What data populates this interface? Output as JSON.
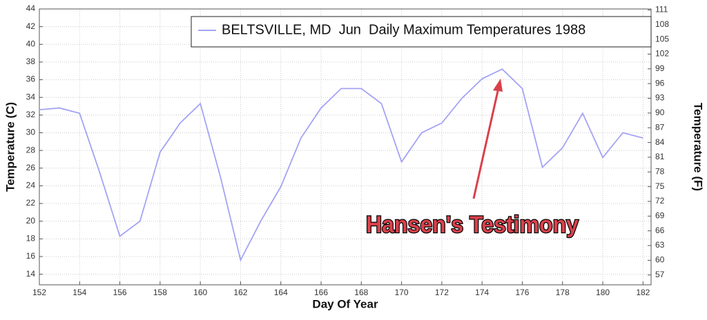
{
  "chart_data": {
    "type": "line",
    "legend_label": "BELTSVILLE, MD  Jun  Daily Maximum Temperatures 1988",
    "xlabel": "Day Of Year",
    "ylabel": "Temperature (C)",
    "y2label": "Temperature (F)",
    "annotation": "Hansen's Testimony",
    "x": [
      152,
      153,
      154,
      155,
      156,
      157,
      158,
      159,
      160,
      161,
      162,
      163,
      164,
      165,
      166,
      167,
      168,
      169,
      170,
      171,
      172,
      173,
      174,
      175,
      176,
      177,
      178,
      179,
      180,
      181,
      182
    ],
    "series": [
      {
        "name": "BELTSVILLE, MD  Jun  Daily Maximum Temperatures 1988",
        "color": "#a3a3f5",
        "values": [
          32.6,
          32.8,
          32.2,
          25.5,
          18.3,
          20.0,
          27.8,
          31.1,
          33.3,
          25.0,
          15.6,
          20.0,
          23.9,
          29.4,
          32.8,
          35.0,
          35.0,
          33.3,
          26.7,
          30.0,
          31.1,
          33.9,
          36.1,
          37.2,
          35.0,
          26.1,
          28.3,
          32.2,
          27.2,
          30.0,
          29.4
        ]
      }
    ],
    "xlim": [
      152,
      182.4
    ],
    "xticks": [
      152,
      154,
      156,
      158,
      160,
      162,
      164,
      166,
      168,
      170,
      172,
      174,
      176,
      178,
      180,
      182
    ],
    "ylim": [
      12.8,
      44
    ],
    "yticks": [
      14,
      16,
      18,
      20,
      22,
      24,
      26,
      28,
      30,
      32,
      34,
      36,
      38,
      40,
      42,
      44
    ],
    "y2lim": [
      55,
      111.2
    ],
    "y2ticks": [
      57,
      60,
      63,
      66,
      69,
      72,
      75,
      78,
      81,
      84,
      87,
      90,
      93,
      96,
      99,
      102,
      105,
      108,
      111
    ],
    "grid": true
  }
}
